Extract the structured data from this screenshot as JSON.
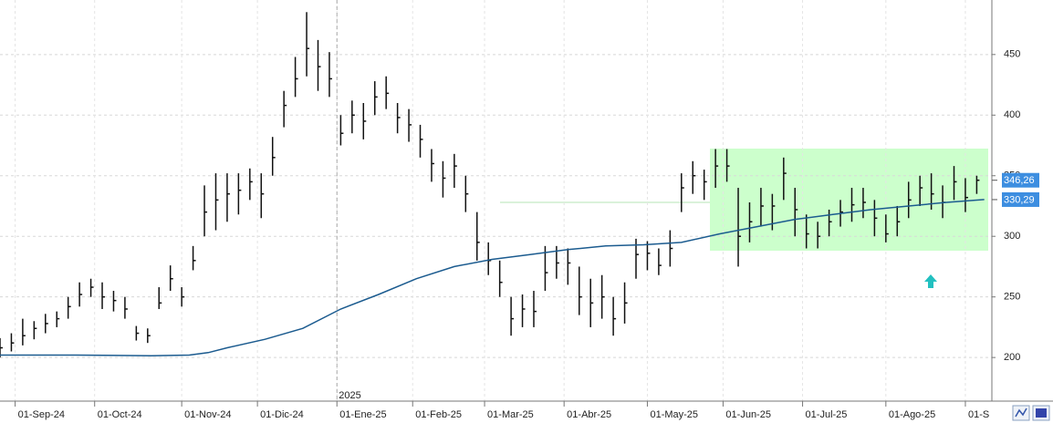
{
  "chart_data": {
    "type": "ohlc",
    "bar_color": "#111111",
    "x": [
      0,
      3,
      6,
      9,
      12,
      15,
      18,
      21,
      24,
      27,
      30,
      33,
      36,
      39,
      42,
      45,
      48,
      51,
      54,
      57,
      60,
      63,
      66,
      69,
      72,
      75,
      78,
      81,
      84,
      87,
      90,
      93,
      96,
      99,
      102,
      105,
      108,
      111,
      114,
      117,
      120,
      123,
      126,
      129,
      132,
      135,
      138,
      141,
      144,
      147,
      150,
      153,
      156,
      159,
      162,
      165,
      168,
      171,
      174,
      177,
      180,
      183,
      186,
      189,
      192,
      195,
      198,
      201,
      204,
      207,
      210,
      213,
      216,
      219,
      222,
      225,
      228,
      231,
      234,
      237,
      240,
      243,
      246,
      249,
      252,
      255,
      258
    ],
    "high": [
      216,
      220,
      232,
      230,
      236,
      238,
      250,
      262,
      265,
      262,
      255,
      250,
      226,
      224,
      258,
      276,
      258,
      292,
      342,
      352,
      352,
      352,
      356,
      352,
      382,
      420,
      448,
      485,
      462,
      452,
      400,
      412,
      410,
      428,
      432,
      410,
      405,
      392,
      372,
      362,
      368,
      350,
      320,
      295,
      280,
      250,
      252,
      255,
      292,
      292,
      290,
      275,
      265,
      268,
      250,
      262,
      298,
      296,
      290,
      305,
      352,
      362,
      355,
      372,
      372,
      340,
      328,
      340,
      335,
      365,
      340,
      318,
      312,
      322,
      330,
      340,
      340,
      330,
      318,
      325,
      345,
      350,
      352,
      342,
      358,
      348,
      350
    ],
    "low": [
      200,
      205,
      210,
      215,
      220,
      225,
      232,
      242,
      250,
      240,
      238,
      232,
      214,
      212,
      240,
      255,
      242,
      272,
      300,
      305,
      312,
      318,
      330,
      315,
      350,
      390,
      415,
      432,
      420,
      415,
      375,
      385,
      380,
      400,
      405,
      385,
      378,
      365,
      345,
      332,
      340,
      320,
      280,
      268,
      250,
      218,
      225,
      225,
      255,
      265,
      260,
      235,
      225,
      232,
      218,
      228,
      265,
      272,
      268,
      275,
      320,
      335,
      330,
      340,
      345,
      275,
      295,
      308,
      305,
      330,
      300,
      290,
      290,
      300,
      308,
      312,
      315,
      300,
      295,
      300,
      315,
      325,
      322,
      315,
      330,
      320,
      335
    ],
    "close": [
      208,
      212,
      218,
      224,
      228,
      232,
      242,
      252,
      258,
      250,
      247,
      240,
      220,
      218,
      245,
      265,
      250,
      280,
      320,
      330,
      335,
      338,
      345,
      335,
      365,
      408,
      430,
      455,
      440,
      430,
      385,
      400,
      395,
      415,
      418,
      398,
      392,
      380,
      360,
      348,
      358,
      335,
      295,
      280,
      262,
      232,
      240,
      238,
      270,
      278,
      278,
      250,
      245,
      250,
      232,
      245,
      285,
      286,
      276,
      290,
      340,
      350,
      345,
      358,
      358,
      300,
      312,
      325,
      325,
      352,
      322,
      302,
      300,
      312,
      320,
      326,
      328,
      315,
      302,
      312,
      330,
      340,
      335,
      328,
      345,
      332,
      346.26
    ],
    "moving_average": {
      "color": "#1b5b8f",
      "x": [
        0,
        20,
        40,
        50,
        55,
        60,
        70,
        80,
        90,
        100,
        110,
        120,
        130,
        140,
        150,
        160,
        170,
        180,
        190,
        200,
        210,
        220,
        230,
        240,
        250,
        260
      ],
      "values": [
        202,
        202,
        201.5,
        202,
        204,
        208,
        215,
        224,
        240,
        252,
        265,
        275,
        281,
        285,
        289,
        292,
        293,
        295,
        302,
        308,
        314,
        318,
        322,
        325,
        328,
        330.29
      ]
    },
    "last_values": [
      {
        "value": 346.26,
        "label": "346,26"
      },
      {
        "value": 330.29,
        "label": "330,29"
      }
    ],
    "last_value_color": "#3d8ee0",
    "year_marker": {
      "value": 89,
      "label": "2025"
    },
    "xlim": [
      0,
      262
    ],
    "xticks": [
      {
        "value": 4,
        "label": "01-Sep-24"
      },
      {
        "value": 25,
        "label": "01-Oct-24"
      },
      {
        "value": 48,
        "label": "01-Nov-24"
      },
      {
        "value": 68,
        "label": "01-Dic-24"
      },
      {
        "value": 89,
        "label": "01-Ene-25"
      },
      {
        "value": 109,
        "label": "01-Feb-25"
      },
      {
        "value": 128,
        "label": "01-Mar-25"
      },
      {
        "value": 149,
        "label": "01-Abr-25"
      },
      {
        "value": 171,
        "label": "01-May-25"
      },
      {
        "value": 191,
        "label": "01-Jun-25"
      },
      {
        "value": 212,
        "label": "01-Jul-25"
      },
      {
        "value": 234,
        "label": "01-Ago-25"
      },
      {
        "value": 255,
        "label": "01-S"
      }
    ],
    "ylim": [
      164,
      495
    ],
    "yticks": [
      200,
      250,
      300,
      350,
      400,
      450
    ],
    "grid": true
  }
}
